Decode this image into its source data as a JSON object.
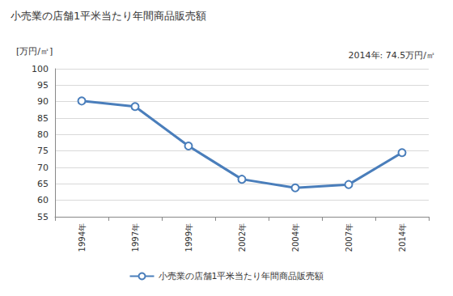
{
  "chart_data": {
    "type": "line",
    "title": "小売業の店舗1平米当たり年間商品販売額",
    "ylabel": "[万円/㎡]",
    "annotations": [
      "2014年: 74.5万円/㎡"
    ],
    "categories": [
      "1994年",
      "1997年",
      "1999年",
      "2002年",
      "2004年",
      "2007年",
      "2014年"
    ],
    "series": [
      {
        "name": "小売業の店舗1平米当たり年間商品販売額",
        "color": "#4a7ebb",
        "marker": "circle",
        "values": [
          90.2,
          88.5,
          76.5,
          66.4,
          63.8,
          64.8,
          74.5
        ]
      }
    ],
    "ylim": [
      55,
      100
    ],
    "yticks": [
      55,
      60,
      65,
      70,
      75,
      80,
      85,
      90,
      95,
      100
    ],
    "grid": true,
    "legend": "bottom"
  }
}
